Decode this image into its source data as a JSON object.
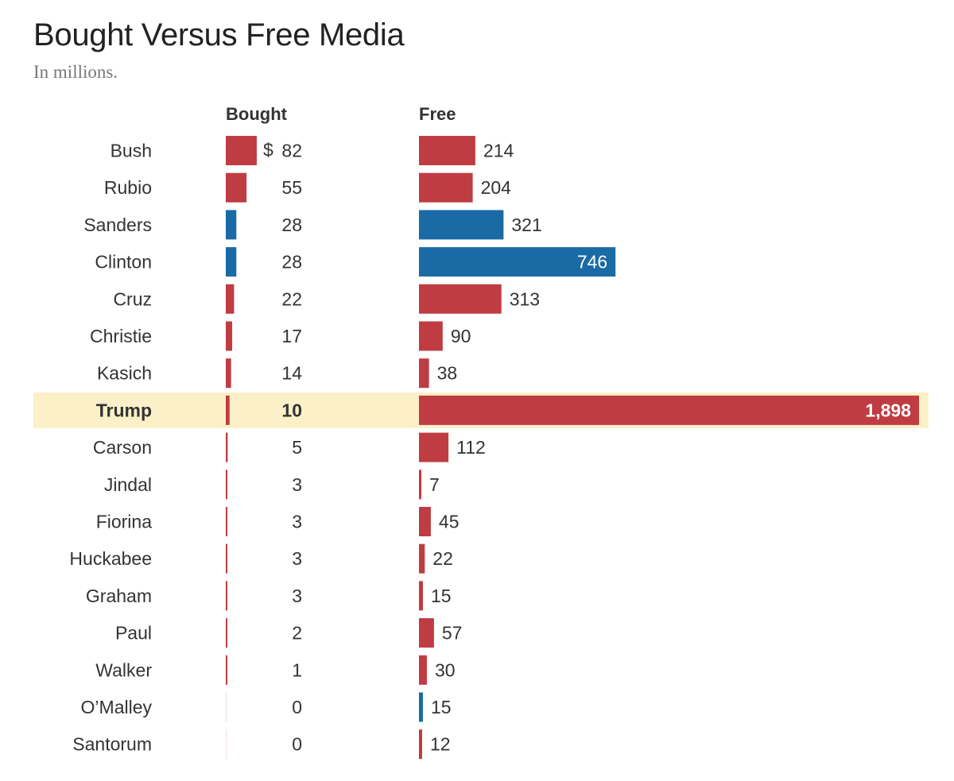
{
  "title": "Bought Versus Free Media",
  "subtitle": "In millions.",
  "columns": {
    "bought": "Bought",
    "free": "Free"
  },
  "currency_prefix": "$",
  "colors": {
    "republican": "#bf3c42",
    "democrat": "#1a6aa5",
    "highlight_bg": "#fcf0c8",
    "text": "#333333"
  },
  "chart_data": {
    "type": "bar",
    "title": "Bought Versus Free Media",
    "subtitle": "In millions.",
    "categories": [
      "Bush",
      "Rubio",
      "Sanders",
      "Clinton",
      "Cruz",
      "Christie",
      "Kasich",
      "Trump",
      "Carson",
      "Jindal",
      "Fiorina",
      "Huckabee",
      "Graham",
      "Paul",
      "Walker",
      "O’Malley",
      "Santorum"
    ],
    "party": [
      "R",
      "R",
      "D",
      "D",
      "R",
      "R",
      "R",
      "R",
      "R",
      "R",
      "R",
      "R",
      "R",
      "R",
      "R",
      "D",
      "R"
    ],
    "highlight": "Trump",
    "series": [
      {
        "name": "Bought",
        "values": [
          82,
          55,
          28,
          28,
          22,
          17,
          14,
          10,
          5,
          3,
          3,
          3,
          3,
          2,
          1,
          0,
          0
        ],
        "labels": [
          "82",
          "55",
          "28",
          "28",
          "22",
          "17",
          "14",
          "10",
          "5",
          "3",
          "3",
          "3",
          "3",
          "2",
          "1",
          "0",
          "0"
        ]
      },
      {
        "name": "Free",
        "values": [
          214,
          204,
          321,
          746,
          313,
          90,
          38,
          1898,
          112,
          7,
          45,
          22,
          15,
          57,
          30,
          15,
          12
        ],
        "labels": [
          "214",
          "204",
          "321",
          "746",
          "313",
          "90",
          "38",
          "1,898",
          "112",
          "7",
          "45",
          "22",
          "15",
          "57",
          "30",
          "15",
          "12"
        ]
      }
    ],
    "grid": false,
    "legend": "none"
  }
}
